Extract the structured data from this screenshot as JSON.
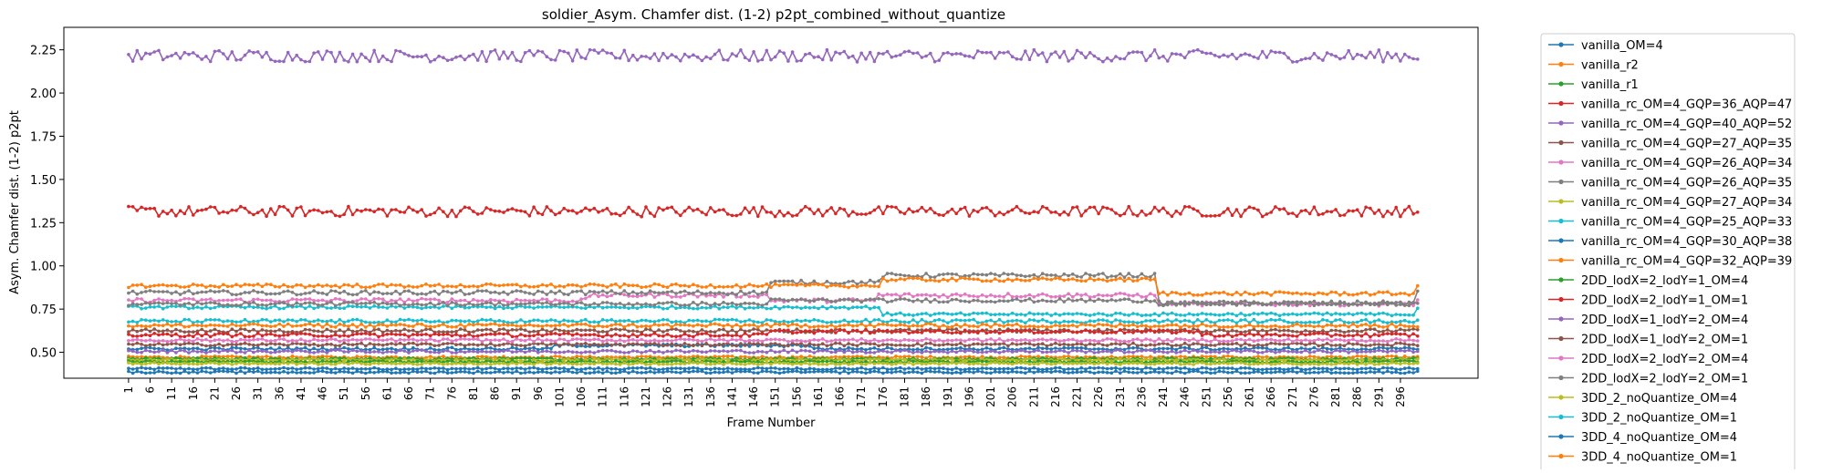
{
  "chart_data": {
    "type": "line",
    "title": "soldier_Asym. Chamfer dist. (1-2) p2pt_combined_without_quantize",
    "xlabel": "Frame Number",
    "ylabel": "Asym. Chamfer dist. (1-2) p2pt",
    "x_start": 1,
    "x_end": 300,
    "x_tick_step": 5,
    "ylim": [
      0.35,
      2.38
    ],
    "yticks": [
      0.5,
      0.75,
      1.0,
      1.25,
      1.5,
      1.75,
      2.0,
      2.25
    ],
    "ytick_labels": [
      "0.50",
      "0.75",
      "1.00",
      "1.25",
      "1.50",
      "1.75",
      "2.00",
      "2.25"
    ],
    "grid": false,
    "legend_position": "outside-right",
    "series": [
      {
        "name": "vanilla_OM=4",
        "color": "#1f77b4",
        "mean": 0.405,
        "noise": 0.006,
        "events": []
      },
      {
        "name": "vanilla_r2",
        "color": "#ff7f0e",
        "mean": 0.472,
        "noise": 0.006,
        "events": []
      },
      {
        "name": "vanilla_r1",
        "color": "#2ca02c",
        "mean": 0.462,
        "noise": 0.006,
        "events": []
      },
      {
        "name": "vanilla_rc_OM=4_GQP=36_AQP=47",
        "color": "#d62728",
        "mean": 1.315,
        "noise": 0.03,
        "events": []
      },
      {
        "name": "vanilla_rc_OM=4_GQP=40_AQP=52",
        "color": "#9467bd",
        "mean": 2.215,
        "noise": 0.035,
        "events": []
      },
      {
        "name": "vanilla_rc_OM=4_GQP=27_AQP=35",
        "color": "#8c564b",
        "mean": 0.625,
        "noise": 0.01,
        "events": []
      },
      {
        "name": "vanilla_rc_OM=4_GQP=26_AQP=34",
        "color": "#e377c2",
        "mean": 0.8,
        "noise": 0.012,
        "events": [
          {
            "start": 108,
            "end": 150,
            "delta": 0.03
          },
          {
            "start": 175,
            "end": 240,
            "delta": 0.03
          },
          {
            "start": 240,
            "end": 300,
            "delta": -0.02
          }
        ]
      },
      {
        "name": "vanilla_rc_OM=4_GQP=26_AQP=35",
        "color": "#7f7f7f",
        "mean": 0.845,
        "noise": 0.012,
        "events": [
          {
            "start": 150,
            "end": 176,
            "delta": 0.06
          },
          {
            "start": 176,
            "end": 240,
            "delta": 0.1
          },
          {
            "start": 240,
            "end": 300,
            "delta": -0.06
          }
        ]
      },
      {
        "name": "vanilla_rc_OM=4_GQP=27_AQP=34",
        "color": "#bcbd22",
        "mean": 0.455,
        "noise": 0.006,
        "events": []
      },
      {
        "name": "vanilla_rc_OM=4_GQP=25_AQP=33",
        "color": "#17becf",
        "mean": 0.76,
        "noise": 0.008,
        "events": [
          {
            "start": 176,
            "end": 300,
            "delta": -0.04
          }
        ]
      },
      {
        "name": "vanilla_rc_OM=4_GQP=30_AQP=38",
        "color": "#1f77b4",
        "mean": 0.52,
        "noise": 0.008,
        "events": [
          {
            "start": 100,
            "end": 160,
            "delta": 0.02
          }
        ]
      },
      {
        "name": "vanilla_rc_OM=4_GQP=32_AQP=39",
        "color": "#ff7f0e",
        "mean": 0.885,
        "noise": 0.01,
        "events": [
          {
            "start": 176,
            "end": 240,
            "delta": 0.035
          },
          {
            "start": 240,
            "end": 300,
            "delta": -0.045
          }
        ]
      },
      {
        "name": "2DD_lodX=2_lodY=1_OM=4",
        "color": "#2ca02c",
        "mean": 0.445,
        "noise": 0.006,
        "events": []
      },
      {
        "name": "2DD_lodX=2_lodY=1_OM=1",
        "color": "#d62728",
        "mean": 0.6,
        "noise": 0.01,
        "events": [
          {
            "start": 150,
            "end": 250,
            "delta": 0.02
          }
        ]
      },
      {
        "name": "2DD_lodX=1_lodY=2_OM=4",
        "color": "#9467bd",
        "mean": 0.505,
        "noise": 0.008,
        "events": []
      },
      {
        "name": "2DD_lodX=1_lodY=2_OM=1",
        "color": "#8c564b",
        "mean": 0.545,
        "noise": 0.008,
        "events": []
      },
      {
        "name": "2DD_lodX=2_lodY=2_OM=4",
        "color": "#e377c2",
        "mean": 0.57,
        "noise": 0.008,
        "events": []
      },
      {
        "name": "2DD_lodX=2_lodY=2_OM=1",
        "color": "#7f7f7f",
        "mean": 0.78,
        "noise": 0.01,
        "events": [
          {
            "start": 150,
            "end": 240,
            "delta": 0.02
          }
        ]
      },
      {
        "name": "3DD_2_noQuantize_OM=4",
        "color": "#bcbd22",
        "mean": 0.435,
        "noise": 0.006,
        "events": []
      },
      {
        "name": "3DD_2_noQuantize_OM=1",
        "color": "#17becf",
        "mean": 0.68,
        "noise": 0.01,
        "events": []
      },
      {
        "name": "3DD_4_noQuantize_OM=4",
        "color": "#1f77b4",
        "mean": 0.385,
        "noise": 0.006,
        "events": []
      },
      {
        "name": "3DD_4_noQuantize_OM=1",
        "color": "#ff7f0e",
        "mean": 0.655,
        "noise": 0.01,
        "events": []
      }
    ]
  }
}
